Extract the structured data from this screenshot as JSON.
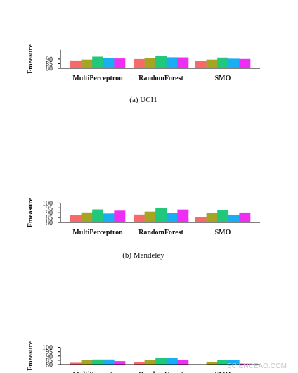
{
  "series_colors": [
    "#f8696b",
    "#a5a523",
    "#21c77b",
    "#19aef2",
    "#ee2ef2"
  ],
  "chart_data": [
    {
      "type": "bar",
      "caption": "(a) UCI1",
      "ylabel": "Fmeasure",
      "ylim": [
        80,
        100
      ],
      "yticks": [
        80,
        85,
        90
      ],
      "grid": false,
      "categories": [
        "MultiPerceptron",
        "RandomForest",
        "SMO"
      ],
      "series": [
        {
          "values": [
            88.5,
            90.0,
            88.0
          ]
        },
        {
          "values": [
            89.4,
            91.4,
            89.4
          ]
        },
        {
          "values": [
            92.6,
            93.4,
            91.6
          ]
        },
        {
          "values": [
            91.0,
            91.9,
            90.4
          ]
        },
        {
          "values": [
            90.6,
            91.8,
            90.1
          ]
        }
      ]
    },
    {
      "type": "bar",
      "caption": "(b) Mendeley",
      "ylabel": "Fmeasure",
      "ylim": [
        80,
        100
      ],
      "yticks": [
        80,
        85,
        90,
        95,
        100
      ],
      "grid": false,
      "categories": [
        "MultiPerceptron",
        "RandomForest",
        "SMO"
      ],
      "series": [
        {
          "values": [
            87.6,
            88.1,
            85.2
          ]
        },
        {
          "values": [
            90.3,
            91.1,
            89.7
          ]
        },
        {
          "values": [
            93.4,
            94.9,
            92.6
          ]
        },
        {
          "values": [
            89.2,
            90.0,
            88.0
          ]
        },
        {
          "values": [
            92.1,
            93.3,
            90.2
          ]
        }
      ]
    },
    {
      "type": "bar",
      "caption": "",
      "ylabel": "Fmeasure",
      "ylim": [
        80,
        100
      ],
      "yticks": [
        80,
        85,
        90,
        95,
        100
      ],
      "grid": false,
      "categories": [
        "MultiPerceptron",
        "RandomForest",
        "SMO"
      ],
      "series": [
        {
          "values": [
            82.1,
            83.0,
            80.4
          ]
        },
        {
          "values": [
            85.2,
            85.6,
            83.3
          ]
        },
        {
          "values": [
            85.9,
            88.1,
            85.0
          ]
        },
        {
          "values": [
            85.9,
            88.2,
            85.0
          ]
        },
        {
          "values": [
            84.0,
            85.0,
            81.0
          ]
        }
      ]
    }
  ],
  "watermark": "SCIENCEAQ.COM"
}
